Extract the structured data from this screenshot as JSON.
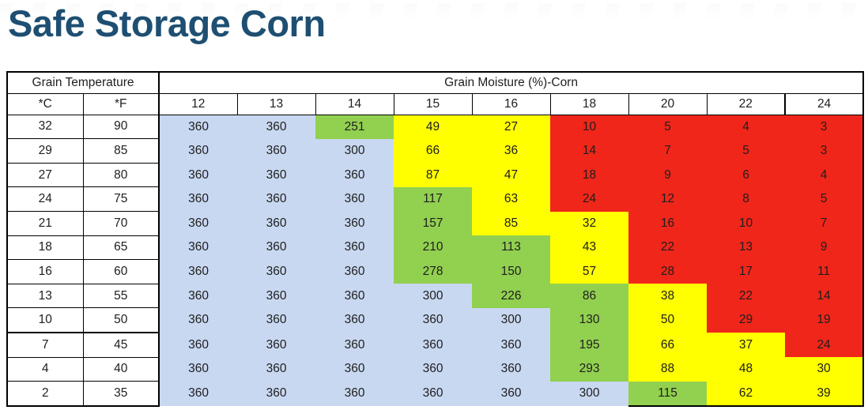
{
  "page": {
    "title": "Safe Storage Corn"
  },
  "colors": {
    "title": "#1E4F72",
    "blue": "#C9D8F1",
    "green": "#92D050",
    "yellow": "#FFFF00",
    "red": "#F1261A",
    "border": "#000000"
  },
  "chart_data": {
    "type": "table",
    "title": "Safe Storage Corn",
    "column_group_headers": [
      {
        "label": "Grain Temperature",
        "span": 2
      },
      {
        "label": "Grain Moisture (%)-Corn",
        "span": 9
      }
    ],
    "temperature_unit_headers": [
      "*C",
      "*F"
    ],
    "moisture_percent_headers": [
      "12",
      "13",
      "14",
      "15",
      "16",
      "18",
      "20",
      "22",
      "24"
    ],
    "cell_fill_colors": {
      "blue": "#C9D8F1",
      "green": "#92D050",
      "yellow": "#FFFF00",
      "red": "#F1261A"
    },
    "rows": [
      {
        "temp_c": "32",
        "temp_f": "90",
        "values": [
          360,
          360,
          251,
          49,
          27,
          10,
          5,
          4,
          3
        ],
        "cell_colors": [
          "blue",
          "blue",
          "green",
          "yellow",
          "yellow",
          "red",
          "red",
          "red",
          "red"
        ]
      },
      {
        "temp_c": "29",
        "temp_f": "85",
        "values": [
          360,
          360,
          300,
          66,
          36,
          14,
          7,
          5,
          3
        ],
        "cell_colors": [
          "blue",
          "blue",
          "blue",
          "yellow",
          "yellow",
          "red",
          "red",
          "red",
          "red"
        ]
      },
      {
        "temp_c": "27",
        "temp_f": "80",
        "values": [
          360,
          360,
          360,
          87,
          47,
          18,
          9,
          6,
          4
        ],
        "cell_colors": [
          "blue",
          "blue",
          "blue",
          "yellow",
          "yellow",
          "red",
          "red",
          "red",
          "red"
        ]
      },
      {
        "temp_c": "24",
        "temp_f": "75",
        "values": [
          360,
          360,
          360,
          117,
          63,
          24,
          12,
          8,
          5
        ],
        "cell_colors": [
          "blue",
          "blue",
          "blue",
          "green",
          "yellow",
          "red",
          "red",
          "red",
          "red"
        ]
      },
      {
        "temp_c": "21",
        "temp_f": "70",
        "values": [
          360,
          360,
          360,
          157,
          85,
          32,
          16,
          10,
          7
        ],
        "cell_colors": [
          "blue",
          "blue",
          "blue",
          "green",
          "yellow",
          "yellow",
          "red",
          "red",
          "red"
        ]
      },
      {
        "temp_c": "18",
        "temp_f": "65",
        "values": [
          360,
          360,
          360,
          210,
          113,
          43,
          22,
          13,
          9
        ],
        "cell_colors": [
          "blue",
          "blue",
          "blue",
          "green",
          "green",
          "yellow",
          "red",
          "red",
          "red"
        ]
      },
      {
        "temp_c": "16",
        "temp_f": "60",
        "values": [
          360,
          360,
          360,
          278,
          150,
          57,
          28,
          17,
          11
        ],
        "cell_colors": [
          "blue",
          "blue",
          "blue",
          "green",
          "green",
          "yellow",
          "red",
          "red",
          "red"
        ]
      },
      {
        "temp_c": "13",
        "temp_f": "55",
        "values": [
          360,
          360,
          360,
          300,
          226,
          86,
          38,
          22,
          14
        ],
        "cell_colors": [
          "blue",
          "blue",
          "blue",
          "blue",
          "green",
          "green",
          "yellow",
          "red",
          "red"
        ]
      },
      {
        "temp_c": "10",
        "temp_f": "50",
        "values": [
          360,
          360,
          360,
          360,
          300,
          130,
          50,
          29,
          19
        ],
        "cell_colors": [
          "blue",
          "blue",
          "blue",
          "blue",
          "blue",
          "green",
          "yellow",
          "red",
          "red"
        ]
      },
      {
        "temp_c": "7",
        "temp_f": "45",
        "values": [
          360,
          360,
          360,
          360,
          360,
          195,
          66,
          37,
          24
        ],
        "cell_colors": [
          "blue",
          "blue",
          "blue",
          "blue",
          "blue",
          "green",
          "yellow",
          "yellow",
          "red"
        ]
      },
      {
        "temp_c": "4",
        "temp_f": "40",
        "values": [
          360,
          360,
          360,
          360,
          360,
          293,
          88,
          48,
          30
        ],
        "cell_colors": [
          "blue",
          "blue",
          "blue",
          "blue",
          "blue",
          "green",
          "yellow",
          "yellow",
          "yellow"
        ]
      },
      {
        "temp_c": "2",
        "temp_f": "35",
        "values": [
          360,
          360,
          360,
          360,
          360,
          300,
          115,
          62,
          39
        ],
        "cell_colors": [
          "blue",
          "blue",
          "blue",
          "blue",
          "blue",
          "blue",
          "green",
          "yellow",
          "yellow"
        ]
      }
    ]
  }
}
